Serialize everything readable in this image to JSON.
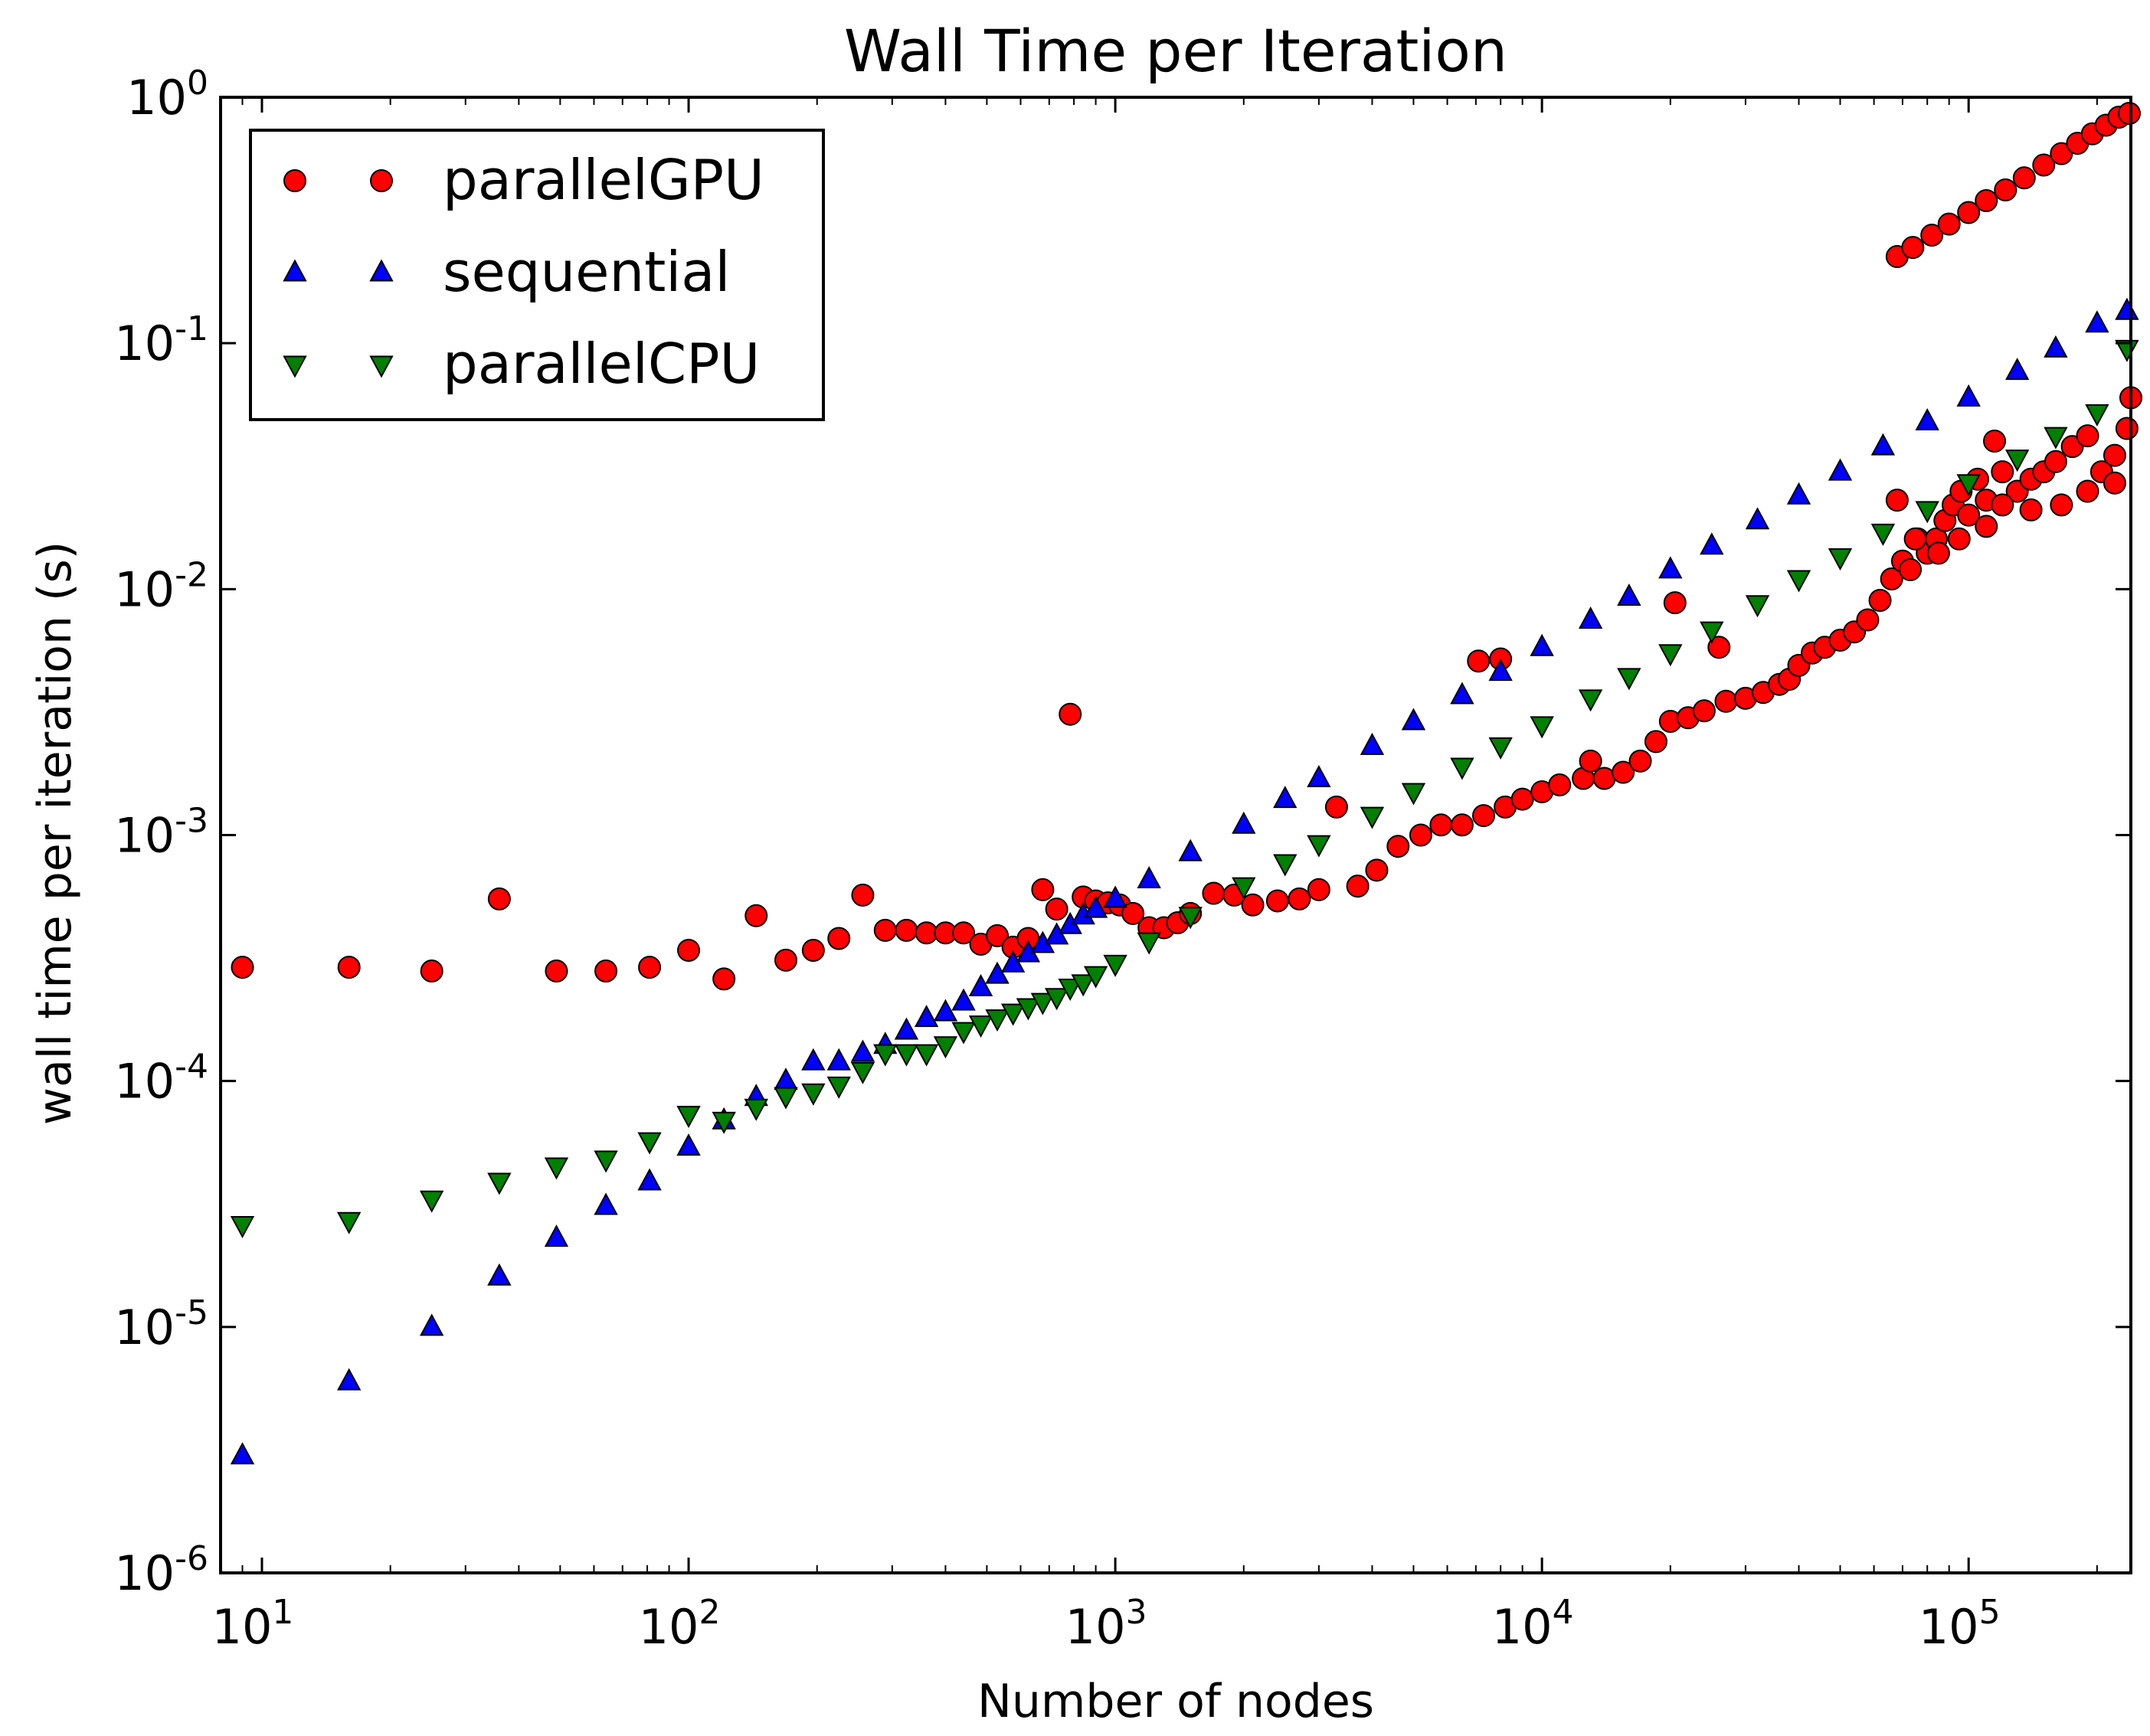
{
  "chart_data": {
    "type": "scatter",
    "title": "Wall Time per Iteration",
    "xlabel": "Number of nodes",
    "ylabel": "wall time per iteration (s)",
    "x_scale": "log",
    "y_scale": "log",
    "xlim": [
      8,
      240000
    ],
    "ylim": [
      1e-06,
      1
    ],
    "grid": false,
    "legend_position": "top-left",
    "x_ticks": [
      {
        "value": 10,
        "base": "10",
        "exp": "1"
      },
      {
        "value": 100,
        "base": "10",
        "exp": "2"
      },
      {
        "value": 1000,
        "base": "10",
        "exp": "3"
      },
      {
        "value": 10000,
        "base": "10",
        "exp": "4"
      },
      {
        "value": 100000,
        "base": "10",
        "exp": "5"
      }
    ],
    "y_ticks": [
      {
        "value": 1e-06,
        "base": "10",
        "exp": "-6"
      },
      {
        "value": 1e-05,
        "base": "10",
        "exp": "-5"
      },
      {
        "value": 0.0001,
        "base": "10",
        "exp": "-4"
      },
      {
        "value": 0.001,
        "base": "10",
        "exp": "-3"
      },
      {
        "value": 0.01,
        "base": "10",
        "exp": "-2"
      },
      {
        "value": 0.1,
        "base": "10",
        "exp": "-1"
      },
      {
        "value": 1,
        "base": "10",
        "exp": "0"
      }
    ],
    "series": [
      {
        "name": "parallelGPU",
        "marker": "circle",
        "color": "#ff0000",
        "points": [
          [
            9,
            0.00029
          ],
          [
            16,
            0.00029
          ],
          [
            25,
            0.00028
          ],
          [
            36,
            0.00055
          ],
          [
            49,
            0.00028
          ],
          [
            64,
            0.00028
          ],
          [
            81,
            0.00029
          ],
          [
            100,
            0.00034
          ],
          [
            121,
            0.00026
          ],
          [
            144,
            0.00047
          ],
          [
            169,
            0.00031
          ],
          [
            196,
            0.00034
          ],
          [
            225,
            0.00038
          ],
          [
            256,
            0.00057
          ],
          [
            289,
            0.00041
          ],
          [
            324,
            0.00041
          ],
          [
            361,
            0.0004
          ],
          [
            400,
            0.0004
          ],
          [
            441,
            0.0004
          ],
          [
            484,
            0.00036
          ],
          [
            529,
            0.00039
          ],
          [
            576,
            0.00035
          ],
          [
            625,
            0.00038
          ],
          [
            676,
            0.0006
          ],
          [
            729,
            0.0005
          ],
          [
            784,
            0.0031
          ],
          [
            841,
            0.00056
          ],
          [
            900,
            0.00054
          ],
          [
            961,
            0.00053
          ],
          [
            1024,
            0.00052
          ],
          [
            1100,
            0.00048
          ],
          [
            1200,
            0.00042
          ],
          [
            1300,
            0.00042
          ],
          [
            1400,
            0.00044
          ],
          [
            1500,
            0.00048
          ],
          [
            1700,
            0.00058
          ],
          [
            1900,
            0.00057
          ],
          [
            2100,
            0.00052
          ],
          [
            2400,
            0.00054
          ],
          [
            2700,
            0.00055
          ],
          [
            3000,
            0.0006
          ],
          [
            3300,
            0.0013
          ],
          [
            3700,
            0.00062
          ],
          [
            4100,
            0.00072
          ],
          [
            4600,
            0.0009
          ],
          [
            5200,
            0.001
          ],
          [
            5800,
            0.0011
          ],
          [
            6500,
            0.0011
          ],
          [
            7100,
            0.0051
          ],
          [
            7300,
            0.0012
          ],
          [
            8000,
            0.0052
          ],
          [
            8200,
            0.0013
          ],
          [
            9000,
            0.0014
          ],
          [
            10000,
            0.0015
          ],
          [
            11000,
            0.0016
          ],
          [
            12500,
            0.0017
          ],
          [
            13000,
            0.002
          ],
          [
            14000,
            0.0017
          ],
          [
            15500,
            0.0018
          ],
          [
            17000,
            0.002
          ],
          [
            18500,
            0.0024
          ],
          [
            20000,
            0.0029
          ],
          [
            20500,
            0.0088
          ],
          [
            22000,
            0.003
          ],
          [
            24000,
            0.0032
          ],
          [
            26000,
            0.0058
          ],
          [
            27000,
            0.0035
          ],
          [
            30000,
            0.0036
          ],
          [
            33000,
            0.0038
          ],
          [
            36000,
            0.0041
          ],
          [
            38000,
            0.0043
          ],
          [
            40000,
            0.0049
          ],
          [
            43000,
            0.0055
          ],
          [
            46000,
            0.0058
          ],
          [
            50000,
            0.0062
          ],
          [
            54000,
            0.0067
          ],
          [
            58000,
            0.0075
          ],
          [
            62000,
            0.009
          ],
          [
            66000,
            0.011
          ],
          [
            70000,
            0.013
          ],
          [
            73000,
            0.012
          ],
          [
            76000,
            0.016
          ],
          [
            80000,
            0.014
          ],
          [
            84000,
            0.016
          ],
          [
            88000,
            0.019
          ],
          [
            92000,
            0.022
          ],
          [
            96000,
            0.025
          ],
          [
            100000,
            0.02
          ],
          [
            105000,
            0.028
          ],
          [
            110000,
            0.023
          ],
          [
            115000,
            0.04
          ],
          [
            120000,
            0.03
          ],
          [
            130000,
            0.025
          ],
          [
            140000,
            0.028
          ],
          [
            150000,
            0.03
          ],
          [
            160000,
            0.033
          ],
          [
            175000,
            0.038
          ],
          [
            190000,
            0.042
          ],
          [
            205000,
            0.03
          ],
          [
            220000,
            0.035
          ],
          [
            235000,
            0.045
          ],
          [
            240000,
            0.06
          ],
          [
            68000,
            0.023
          ],
          [
            75000,
            0.016
          ],
          [
            85000,
            0.014
          ],
          [
            95000,
            0.016
          ],
          [
            110000,
            0.018
          ],
          [
            120000,
            0.022
          ],
          [
            140000,
            0.021
          ],
          [
            165000,
            0.022
          ],
          [
            190000,
            0.025
          ],
          [
            220000,
            0.027
          ],
          [
            68000,
            0.225
          ],
          [
            74000,
            0.245
          ],
          [
            82000,
            0.275
          ],
          [
            90000,
            0.305
          ],
          [
            100000,
            0.34
          ],
          [
            110000,
            0.38
          ],
          [
            122000,
            0.42
          ],
          [
            135000,
            0.47
          ],
          [
            150000,
            0.53
          ],
          [
            165000,
            0.59
          ],
          [
            180000,
            0.65
          ],
          [
            195000,
            0.71
          ],
          [
            210000,
            0.77
          ],
          [
            225000,
            0.83
          ],
          [
            238000,
            0.86
          ]
        ]
      },
      {
        "name": "sequential",
        "marker": "triangle-up",
        "color": "#0000ff",
        "points": [
          [
            9,
            3e-06
          ],
          [
            16,
            6e-06
          ],
          [
            25,
            1e-05
          ],
          [
            36,
            1.6e-05
          ],
          [
            49,
            2.3e-05
          ],
          [
            64,
            3.1e-05
          ],
          [
            81,
            3.9e-05
          ],
          [
            100,
            5.4e-05
          ],
          [
            121,
            6.9e-05
          ],
          [
            144,
            8.6e-05
          ],
          [
            169,
            0.0001
          ],
          [
            196,
            0.00012
          ],
          [
            225,
            0.00012
          ],
          [
            256,
            0.00013
          ],
          [
            289,
            0.00014
          ],
          [
            324,
            0.00016
          ],
          [
            361,
            0.00018
          ],
          [
            400,
            0.00019
          ],
          [
            441,
            0.00021
          ],
          [
            484,
            0.00024
          ],
          [
            529,
            0.00027
          ],
          [
            576,
            0.0003
          ],
          [
            625,
            0.00033
          ],
          [
            676,
            0.00036
          ],
          [
            729,
            0.00039
          ],
          [
            784,
            0.00043
          ],
          [
            841,
            0.00047
          ],
          [
            900,
            0.0005
          ],
          [
            1000,
            0.00055
          ],
          [
            1200,
            0.00066
          ],
          [
            1500,
            0.00085
          ],
          [
            2000,
            0.0011
          ],
          [
            2500,
            0.0014
          ],
          [
            3000,
            0.0017
          ],
          [
            4000,
            0.0023
          ],
          [
            5000,
            0.0029
          ],
          [
            6500,
            0.0037
          ],
          [
            8000,
            0.0046
          ],
          [
            10000,
            0.0058
          ],
          [
            13000,
            0.0075
          ],
          [
            16000,
            0.0093
          ],
          [
            20000,
            0.012
          ],
          [
            25000,
            0.015
          ],
          [
            32000,
            0.019
          ],
          [
            40000,
            0.024
          ],
          [
            50000,
            0.03
          ],
          [
            63000,
            0.038
          ],
          [
            80000,
            0.048
          ],
          [
            100000,
            0.06
          ],
          [
            130000,
            0.077
          ],
          [
            160000,
            0.095
          ],
          [
            200000,
            0.12
          ],
          [
            235000,
            0.135
          ]
        ]
      },
      {
        "name": "parallelCPU",
        "marker": "triangle-down",
        "color": "#008000",
        "points": [
          [
            9,
            2.6e-05
          ],
          [
            16,
            2.7e-05
          ],
          [
            25,
            3.3e-05
          ],
          [
            36,
            3.9e-05
          ],
          [
            49,
            4.5e-05
          ],
          [
            64,
            4.8e-05
          ],
          [
            81,
            5.7e-05
          ],
          [
            100,
            7.3e-05
          ],
          [
            121,
            6.9e-05
          ],
          [
            144,
            7.8e-05
          ],
          [
            169,
            8.7e-05
          ],
          [
            196,
            9e-05
          ],
          [
            225,
            9.6e-05
          ],
          [
            256,
            0.00011
          ],
          [
            289,
            0.00013
          ],
          [
            324,
            0.00013
          ],
          [
            361,
            0.00013
          ],
          [
            400,
            0.00014
          ],
          [
            441,
            0.00016
          ],
          [
            484,
            0.00017
          ],
          [
            529,
            0.00018
          ],
          [
            576,
            0.00019
          ],
          [
            625,
            0.0002
          ],
          [
            676,
            0.00021
          ],
          [
            729,
            0.00022
          ],
          [
            784,
            0.00024
          ],
          [
            841,
            0.00025
          ],
          [
            900,
            0.00027
          ],
          [
            1000,
            0.0003
          ],
          [
            1200,
            0.00037
          ],
          [
            1500,
            0.00047
          ],
          [
            2000,
            0.00062
          ],
          [
            2500,
            0.00077
          ],
          [
            3000,
            0.00092
          ],
          [
            4000,
            0.0012
          ],
          [
            5000,
            0.0015
          ],
          [
            6500,
            0.0019
          ],
          [
            8000,
            0.0023
          ],
          [
            10000,
            0.0028
          ],
          [
            13000,
            0.0036
          ],
          [
            16000,
            0.0044
          ],
          [
            20000,
            0.0055
          ],
          [
            25000,
            0.0068
          ],
          [
            32000,
            0.0087
          ],
          [
            40000,
            0.011
          ],
          [
            50000,
            0.0135
          ],
          [
            63000,
            0.017
          ],
          [
            80000,
            0.021
          ],
          [
            100000,
            0.027
          ],
          [
            130000,
            0.034
          ],
          [
            160000,
            0.042
          ],
          [
            200000,
            0.052
          ],
          [
            235000,
            0.095
          ]
        ]
      }
    ]
  }
}
